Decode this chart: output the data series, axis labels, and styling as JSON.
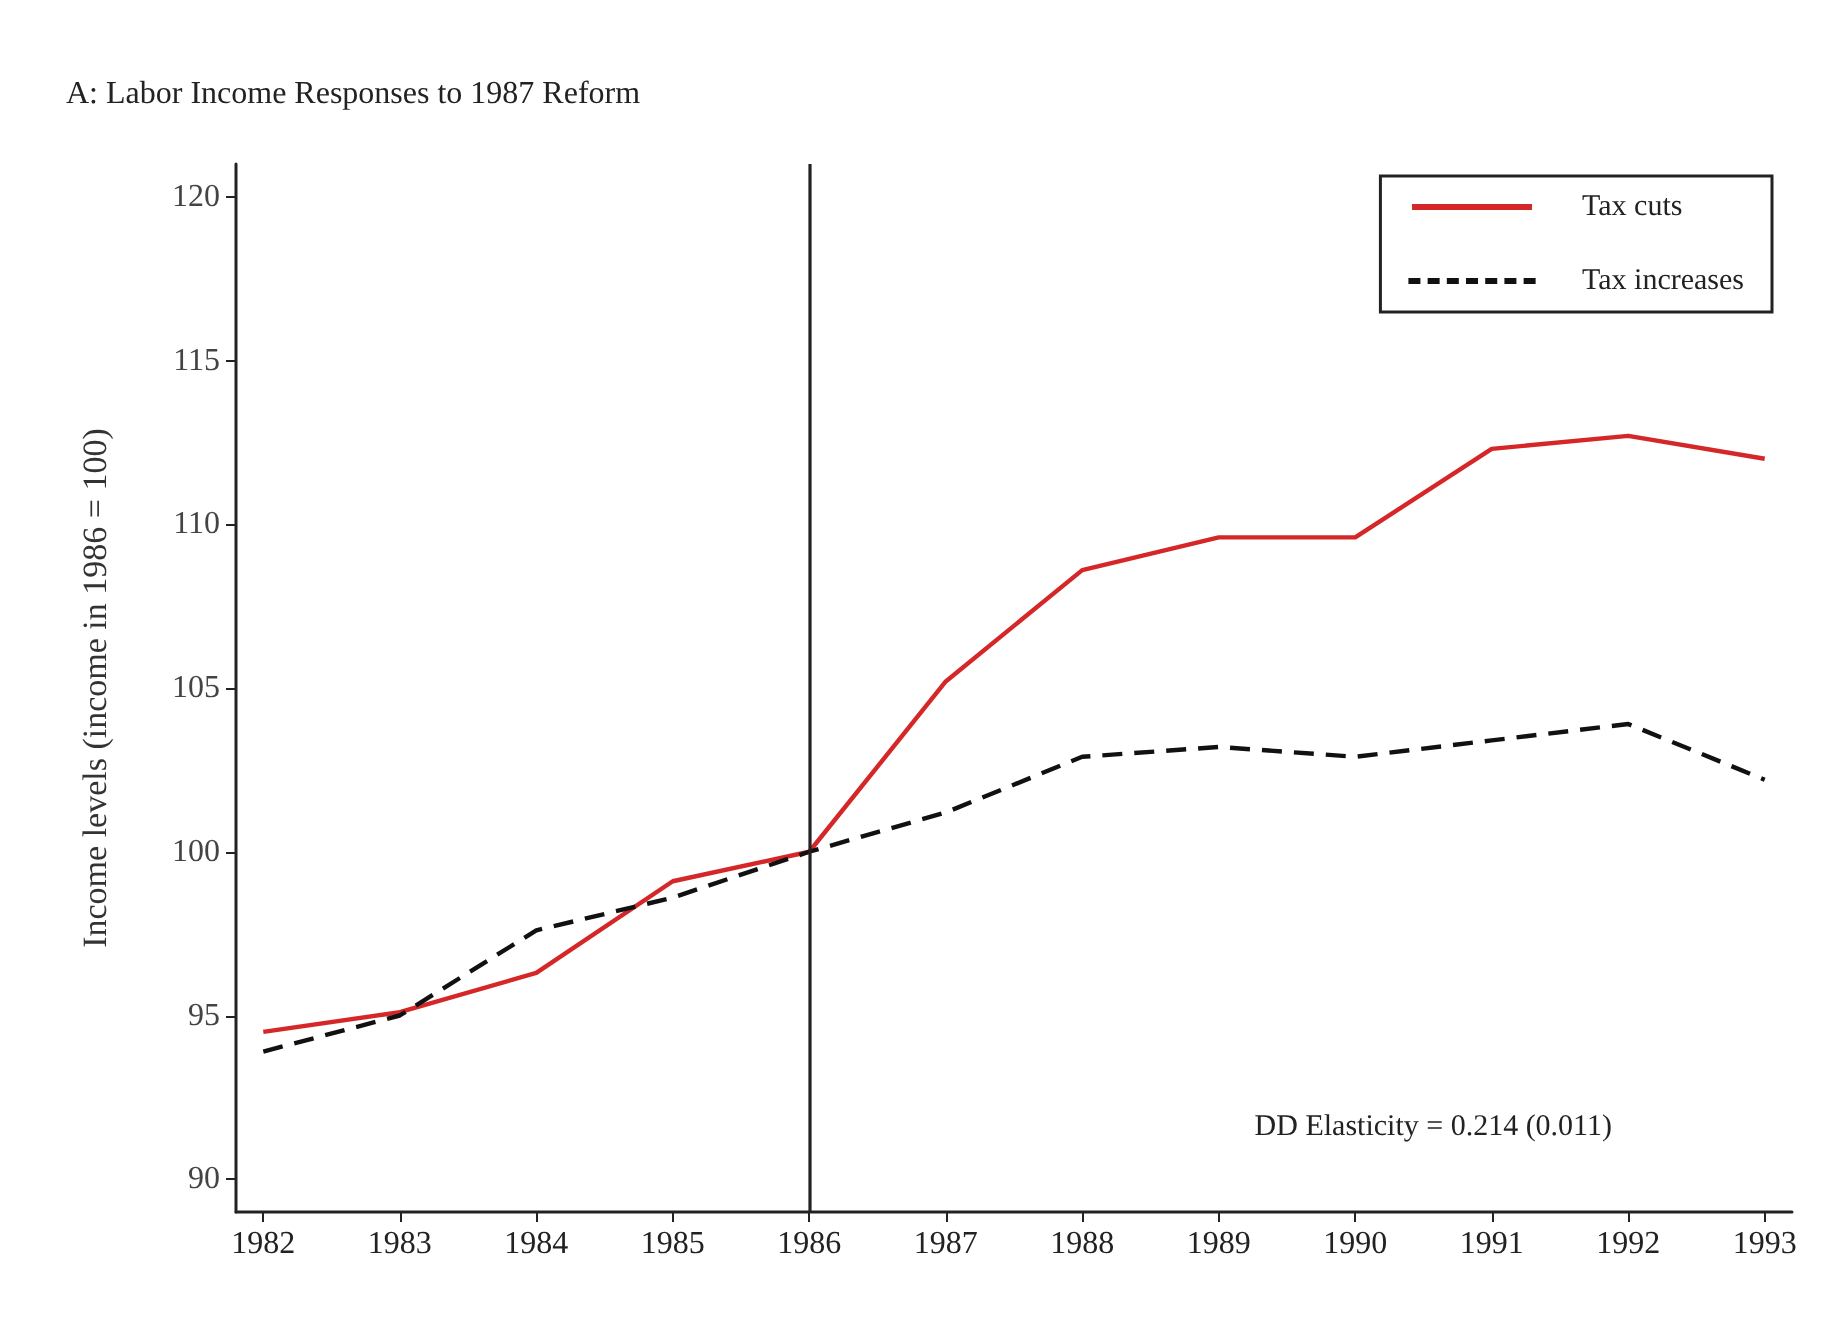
{
  "chart_data": {
    "type": "line",
    "title": "A: Labor Income Responses to 1987 Reform",
    "ylabel": "Income levels (income in 1986 = 100)",
    "x": [
      1982,
      1983,
      1984,
      1985,
      1986,
      1987,
      1988,
      1989,
      1990,
      1991,
      1992,
      1993
    ],
    "series": [
      {
        "name": "Tax cuts",
        "color": "#d62728",
        "line_style": "solid",
        "values": [
          94.5,
          95.1,
          96.3,
          99.1,
          100,
          105.2,
          108.6,
          109.6,
          109.6,
          112.3,
          112.7,
          112.0
        ]
      },
      {
        "name": "Tax increases",
        "color": "#111111",
        "line_style": "dashed",
        "values": [
          93.9,
          95.0,
          97.6,
          98.6,
          100,
          101.2,
          102.9,
          103.2,
          102.9,
          103.4,
          103.9,
          102.2
        ]
      }
    ],
    "xlim": [
      1981.8,
      1993.2
    ],
    "xticks": [
      1982,
      1983,
      1984,
      1985,
      1986,
      1987,
      1988,
      1989,
      1990,
      1991,
      1992,
      1993
    ],
    "ylim": [
      89,
      121
    ],
    "yticks": [
      90,
      95,
      100,
      105,
      110,
      115,
      120
    ],
    "ref_lines": [
      {
        "axis": "x",
        "value": 1986,
        "color": "#222222"
      }
    ],
    "annotations": [
      "DD Elasticity = 0.214 (0.011)"
    ],
    "legend": "top right",
    "grid": false,
    "marker": "none"
  }
}
